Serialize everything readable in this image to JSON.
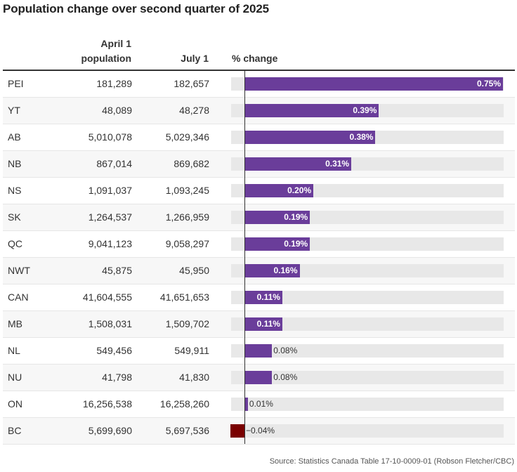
{
  "title": "Population change over second quarter of 2025",
  "headers": {
    "april_line1": "April 1",
    "april_line2": "population",
    "july": "July 1",
    "pct": "% change"
  },
  "source": "Source: Statistics Canada Table 17-10-0009-01 (Robson Fletcher/CBC)",
  "colors": {
    "positive": "#6a3d9a",
    "negative": "#7a0000",
    "track": "#e8e8e8"
  },
  "chart_data": {
    "type": "bar",
    "title": "Population change over second quarter of 2025",
    "columns": [
      "April 1 population",
      "July 1",
      "% change"
    ],
    "categories": [
      "PEI",
      "YT",
      "AB",
      "NB",
      "NS",
      "SK",
      "QC",
      "NWT",
      "CAN",
      "MB",
      "NL",
      "NU",
      "ON",
      "BC"
    ],
    "rows": [
      {
        "region": "PEI",
        "april": "181,289",
        "july": "182,657",
        "pct": 0.75,
        "label": "0.75%"
      },
      {
        "region": "YT",
        "april": "48,089",
        "july": "48,278",
        "pct": 0.39,
        "label": "0.39%"
      },
      {
        "region": "AB",
        "april": "5,010,078",
        "july": "5,029,346",
        "pct": 0.38,
        "label": "0.38%"
      },
      {
        "region": "NB",
        "april": "867,014",
        "july": "869,682",
        "pct": 0.31,
        "label": "0.31%"
      },
      {
        "region": "NS",
        "april": "1,091,037",
        "july": "1,093,245",
        "pct": 0.2,
        "label": "0.20%"
      },
      {
        "region": "SK",
        "april": "1,264,537",
        "july": "1,266,959",
        "pct": 0.19,
        "label": "0.19%"
      },
      {
        "region": "QC",
        "april": "9,041,123",
        "july": "9,058,297",
        "pct": 0.19,
        "label": "0.19%"
      },
      {
        "region": "NWT",
        "april": "45,875",
        "july": "45,950",
        "pct": 0.16,
        "label": "0.16%"
      },
      {
        "region": "CAN",
        "april": "41,604,555",
        "july": "41,651,653",
        "pct": 0.11,
        "label": "0.11%"
      },
      {
        "region": "MB",
        "april": "1,508,031",
        "july": "1,509,702",
        "pct": 0.11,
        "label": "0.11%"
      },
      {
        "region": "NL",
        "april": "549,456",
        "july": "549,911",
        "pct": 0.08,
        "label": "0.08%"
      },
      {
        "region": "NU",
        "april": "41,798",
        "july": "41,830",
        "pct": 0.08,
        "label": "0.08%"
      },
      {
        "region": "ON",
        "april": "16,256,538",
        "july": "16,258,260",
        "pct": 0.01,
        "label": "0.01%"
      },
      {
        "region": "BC",
        "april": "5,699,690",
        "july": "5,697,536",
        "pct": -0.04,
        "label": "−0.04%"
      }
    ],
    "xlim": [
      -0.04,
      0.75
    ]
  }
}
